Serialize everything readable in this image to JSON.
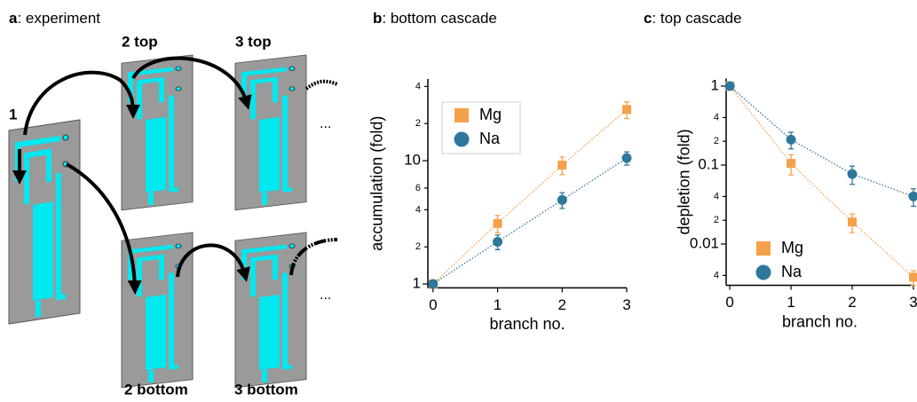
{
  "diagram": {
    "panel_label": "a",
    "title": ": experiment",
    "chips": [
      "1",
      "2 top",
      "3 top",
      "2 bottom",
      "3 bottom"
    ],
    "ellipsis": [
      "...",
      "..."
    ]
  },
  "chart_data": [
    {
      "type": "line",
      "panel_label": "b",
      "title": ": bottom cascade",
      "x_label": "branch no.",
      "y_label": "accumulation (fold)",
      "x": [
        0,
        1,
        2,
        3
      ],
      "xlim": [
        -0.08,
        3.0
      ],
      "xticks": [
        0,
        1,
        2,
        3
      ],
      "ylim": [
        0.93,
        46
      ],
      "log_y": true,
      "yticks": [
        1,
        2,
        4,
        6,
        10,
        {
          "value": 20,
          "label": "2"
        },
        {
          "value": 40,
          "label": "4"
        }
      ],
      "legend": "upper left",
      "legend_frame": true,
      "series": [
        {
          "name": "Mg",
          "color": "#f5a04a",
          "marker": "square",
          "values": [
            1,
            3.1,
            9.2,
            26
          ],
          "errors": [
            0,
            0.5,
            1.5,
            4
          ]
        },
        {
          "name": "Na",
          "color": "#2e789c",
          "marker": "circle",
          "values": [
            1,
            2.2,
            4.8,
            10.5
          ],
          "errors": [
            0,
            0.3,
            0.7,
            1.3
          ]
        }
      ]
    },
    {
      "type": "line",
      "panel_label": "c",
      "title": ": top cascade",
      "x_label": "branch no.",
      "y_label": "depletion (fold)",
      "x": [
        0,
        1,
        2,
        3
      ],
      "xlim": [
        -0.06,
        3.0
      ],
      "xticks": [
        0,
        1,
        2,
        3
      ],
      "ylim": [
        0.003,
        1.25
      ],
      "log_y": true,
      "yticks": [
        1,
        {
          "value": 0.4,
          "label": "4"
        },
        {
          "value": 0.2,
          "label": "2"
        },
        0.1,
        {
          "value": 0.04,
          "label": "4"
        },
        {
          "value": 0.02,
          "label": "2"
        },
        0.01,
        {
          "value": 0.004,
          "label": "4"
        }
      ],
      "legend": "lower left",
      "legend_frame": false,
      "series": [
        {
          "name": "Mg",
          "color": "#f5a04a",
          "marker": "square",
          "values": [
            1,
            0.105,
            0.019,
            0.0038
          ],
          "errors": [
            0,
            0.03,
            0.005,
            0.0008
          ]
        },
        {
          "name": "Na",
          "color": "#2e789c",
          "marker": "circle",
          "values": [
            1,
            0.21,
            0.077,
            0.04
          ],
          "errors": [
            0.1,
            0.05,
            0.02,
            0.01
          ]
        }
      ]
    }
  ]
}
